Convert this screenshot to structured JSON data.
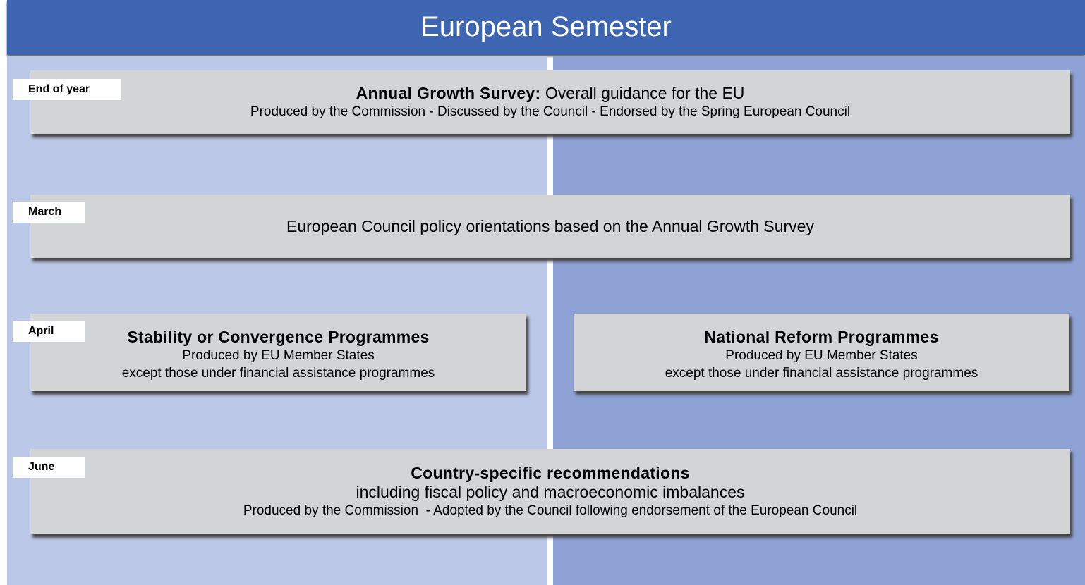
{
  "header": {
    "title": "European Semester"
  },
  "stages": [
    {
      "label": "End of year",
      "boxes": [
        {
          "title_bold": "Annual Growth Survey:",
          "title_rest": "Overall guidance for the EU",
          "lines": [
            "Produced by the Commission - Discussed by the Council - Endorsed by the Spring European Council"
          ]
        }
      ]
    },
    {
      "label": "March",
      "boxes": [
        {
          "title_rest": "European Council policy orientations based on the Annual Growth Survey",
          "lines": []
        }
      ]
    },
    {
      "label": "April",
      "boxes": [
        {
          "title_bold": "Stability or Convergence Programmes",
          "lines": [
            "Produced by EU Member States",
            "except those under financial assistance programmes"
          ]
        },
        {
          "title_bold": "National Reform Programmes",
          "lines": [
            "Produced by EU Member States",
            "except those under financial assistance programmes"
          ]
        }
      ]
    },
    {
      "label": "June",
      "boxes": [
        {
          "title_bold": "Country-specific recommendations",
          "lines": [
            "including fiscal policy and macroeconomic imbalances",
            "Produced by the Commission  - Adopted by the Council following endorsement of the European Council"
          ]
        }
      ]
    }
  ]
}
